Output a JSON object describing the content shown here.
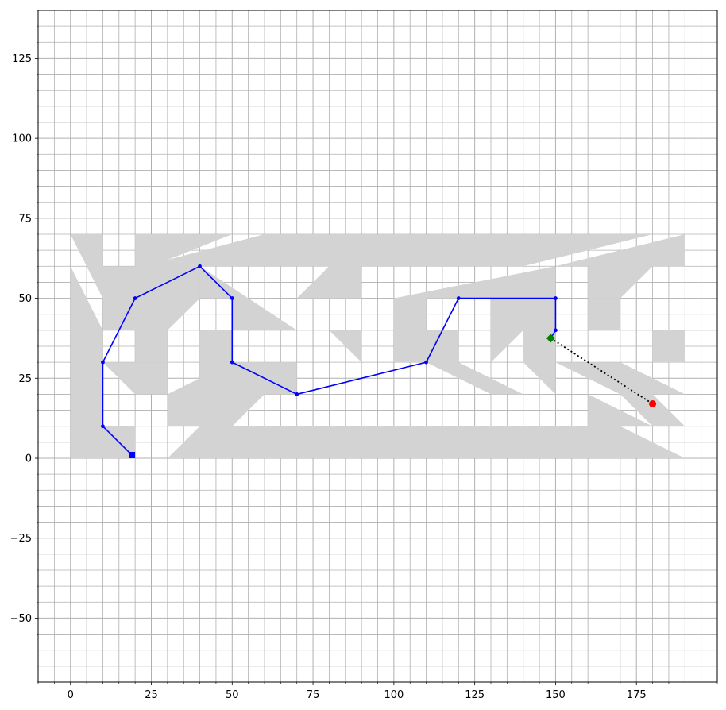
{
  "chart_data": {
    "type": "line",
    "title": "",
    "xlabel": "",
    "ylabel": "",
    "xlim": [
      -10,
      200
    ],
    "ylim": [
      -70,
      140
    ],
    "grid": true,
    "minor_grid": true,
    "x_ticks": [
      0,
      25,
      50,
      75,
      100,
      125,
      150,
      175
    ],
    "x_tick_labels": [
      "0",
      "25",
      "50",
      "75",
      "100",
      "125",
      "150",
      "175"
    ],
    "y_ticks": [
      -50,
      -25,
      0,
      25,
      50,
      75,
      100,
      125
    ],
    "y_tick_labels": [
      "−50",
      "−25",
      "0",
      "25",
      "50",
      "75",
      "100",
      "125"
    ],
    "colors": {
      "obstacle": "#d3d3d3",
      "path": "#0000ff",
      "start": "#0000ff",
      "current": "#008000",
      "goal": "#ff0000",
      "connector": "#000000",
      "grid": "#b0b0b0"
    },
    "obstacles": [
      [
        [
          0,
          70
        ],
        [
          10,
          70
        ],
        [
          10,
          60
        ],
        [
          20,
          60
        ],
        [
          20,
          70
        ],
        [
          50,
          70
        ],
        [
          30,
          62
        ],
        [
          40,
          60
        ],
        [
          40,
          50
        ],
        [
          30,
          40
        ],
        [
          30,
          30
        ],
        [
          20,
          30
        ],
        [
          20,
          40
        ],
        [
          10,
          40
        ],
        [
          10,
          50
        ],
        [
          0,
          70
        ]
      ],
      [
        [
          0,
          60
        ],
        [
          10,
          40
        ],
        [
          10,
          10
        ],
        [
          20,
          10
        ],
        [
          20,
          0
        ],
        [
          0,
          0
        ]
      ],
      [
        [
          10,
          40
        ],
        [
          20,
          40
        ],
        [
          20,
          50
        ],
        [
          30,
          50
        ],
        [
          30,
          40
        ]
      ],
      [
        [
          10,
          30
        ],
        [
          20,
          30
        ],
        [
          30,
          30
        ],
        [
          30,
          20
        ],
        [
          20,
          20
        ],
        [
          10,
          30
        ]
      ],
      [
        [
          30,
          62
        ],
        [
          60,
          70
        ],
        [
          180,
          70
        ],
        [
          140,
          60
        ],
        [
          90,
          60
        ],
        [
          90,
          50
        ],
        [
          70,
          50
        ],
        [
          80,
          60
        ],
        [
          40,
          60
        ]
      ],
      [
        [
          40,
          50
        ],
        [
          50,
          50
        ],
        [
          50,
          40
        ],
        [
          70,
          40
        ],
        [
          40,
          60
        ]
      ],
      [
        [
          40,
          40
        ],
        [
          50,
          40
        ],
        [
          50,
          30
        ],
        [
          70,
          30
        ],
        [
          70,
          20
        ],
        [
          60,
          20
        ],
        [
          50,
          10
        ],
        [
          40,
          10
        ],
        [
          30,
          10
        ],
        [
          40,
          20
        ],
        [
          40,
          40
        ]
      ],
      [
        [
          90,
          50
        ],
        [
          100,
          50
        ],
        [
          100,
          40
        ],
        [
          110,
          40
        ],
        [
          110,
          50
        ],
        [
          120,
          50
        ],
        [
          150,
          50
        ],
        [
          150,
          60
        ],
        [
          100,
          50
        ],
        [
          90,
          50
        ]
      ],
      [
        [
          100,
          50
        ],
        [
          110,
          50
        ],
        [
          110,
          40
        ],
        [
          100,
          40
        ]
      ],
      [
        [
          80,
          40
        ],
        [
          90,
          30
        ],
        [
          90,
          40
        ],
        [
          100,
          40
        ],
        [
          100,
          30
        ],
        [
          110,
          30
        ],
        [
          130,
          20
        ],
        [
          140,
          20
        ],
        [
          120,
          30
        ],
        [
          120,
          40
        ],
        [
          80,
          40
        ]
      ],
      [
        [
          140,
          50
        ],
        [
          150,
          50
        ],
        [
          150,
          40
        ],
        [
          140,
          40
        ]
      ],
      [
        [
          150,
          60
        ],
        [
          160,
          60
        ],
        [
          160,
          50
        ],
        [
          170,
          50
        ],
        [
          180,
          40
        ],
        [
          180,
          30
        ],
        [
          190,
          30
        ],
        [
          190,
          40
        ],
        [
          180,
          40
        ],
        [
          170,
          50
        ],
        [
          180,
          60
        ],
        [
          190,
          60
        ],
        [
          190,
          70
        ],
        [
          150,
          60
        ]
      ],
      [
        [
          130,
          50
        ],
        [
          140,
          50
        ],
        [
          140,
          40
        ],
        [
          130,
          30
        ],
        [
          130,
          50
        ]
      ],
      [
        [
          140,
          40
        ],
        [
          150,
          40
        ],
        [
          150,
          30
        ],
        [
          150,
          20
        ],
        [
          140,
          30
        ],
        [
          140,
          40
        ]
      ],
      [
        [
          150,
          30
        ],
        [
          170,
          30
        ],
        [
          190,
          20
        ],
        [
          170,
          20
        ],
        [
          150,
          30
        ]
      ],
      [
        [
          160,
          50
        ],
        [
          170,
          50
        ],
        [
          170,
          40
        ],
        [
          160,
          40
        ],
        [
          160,
          50
        ]
      ],
      [
        [
          170,
          30
        ],
        [
          190,
          10
        ],
        [
          180,
          10
        ],
        [
          170,
          20
        ]
      ],
      [
        [
          30,
          0
        ],
        [
          40,
          10
        ],
        [
          160,
          10
        ],
        [
          160,
          20
        ],
        [
          180,
          10
        ],
        [
          170,
          10
        ],
        [
          190,
          0
        ],
        [
          30,
          0
        ]
      ],
      [
        [
          30,
          20
        ],
        [
          50,
          30
        ],
        [
          50,
          20
        ],
        [
          30,
          10
        ],
        [
          30,
          20
        ]
      ]
    ],
    "series": [
      {
        "x": [
          19,
          10,
          10,
          20,
          40,
          50,
          50,
          70,
          110,
          120,
          150,
          150,
          148.5
        ],
        "y": [
          1,
          10,
          30,
          50,
          60,
          50,
          30,
          20,
          30,
          50,
          50,
          40,
          37.5
        ],
        "style": "solid",
        "marker": "dot"
      }
    ],
    "connector": {
      "x": [
        148.5,
        180
      ],
      "y": [
        37.5,
        17
      ],
      "style": "dotted"
    },
    "start": {
      "x": 19,
      "y": 1,
      "marker": "square"
    },
    "current": {
      "x": 148.5,
      "y": 37.5,
      "marker": "diamond"
    },
    "goal": {
      "x": 180,
      "y": 17,
      "marker": "circle"
    }
  }
}
